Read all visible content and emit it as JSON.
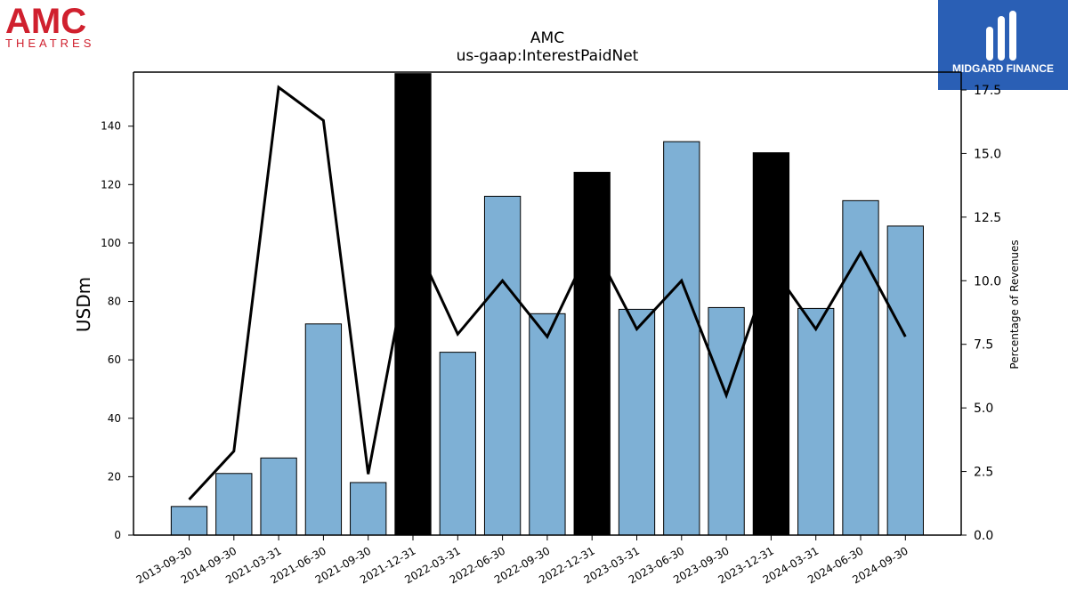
{
  "logos": {
    "left_brand": "AMC",
    "left_sub": "THEATRES",
    "right_brand": "MIDGARD FINANCE",
    "left_color": "#d0202e",
    "right_bg": "#2a5fb5"
  },
  "chart_data": {
    "type": "bar",
    "title": "AMC",
    "subtitle": "us-gaap:InterestPaidNet",
    "ylabel": "USDm",
    "ylabel_right": "Percentage of Revenues",
    "categories": [
      "2013-09-30",
      "2014-09-30",
      "2021-03-31",
      "2021-06-30",
      "2021-09-30",
      "2021-12-31",
      "2022-03-31",
      "2022-06-30",
      "2022-09-30",
      "2022-12-31",
      "2023-03-31",
      "2023-06-30",
      "2023-09-30",
      "2023-12-31",
      "2024-03-31",
      "2024-06-30",
      "2024-09-30"
    ],
    "bar_values": [
      9.8,
      21.1,
      26.4,
      72.3,
      18.0,
      158.0,
      62.6,
      116.0,
      75.8,
      124.2,
      77.3,
      134.7,
      77.9,
      130.9,
      77.6,
      114.5,
      105.8
    ],
    "bar_highlight": [
      false,
      false,
      false,
      false,
      false,
      true,
      false,
      false,
      false,
      true,
      false,
      false,
      false,
      true,
      false,
      false,
      false
    ],
    "series": [
      {
        "name": "Percentage of Revenues",
        "axis": "right",
        "values": [
          1.4,
          3.3,
          17.6,
          16.3,
          2.4,
          11.7,
          7.9,
          10.0,
          7.8,
          11.5,
          8.1,
          10.0,
          5.5,
          10.6,
          8.1,
          11.1,
          7.8
        ]
      }
    ],
    "ylim": [
      0,
      158.5
    ],
    "ylim_right": [
      0,
      18.2
    ],
    "yticks": [
      0,
      20,
      40,
      60,
      80,
      100,
      120,
      140
    ],
    "yticks_right": [
      "0.0",
      "2.5",
      "5.0",
      "7.5",
      "10.0",
      "12.5",
      "15.0",
      "17.5"
    ],
    "colors": {
      "bar": "#7eb0d5",
      "bar_highlight": "#000000",
      "line": "#000000"
    }
  }
}
